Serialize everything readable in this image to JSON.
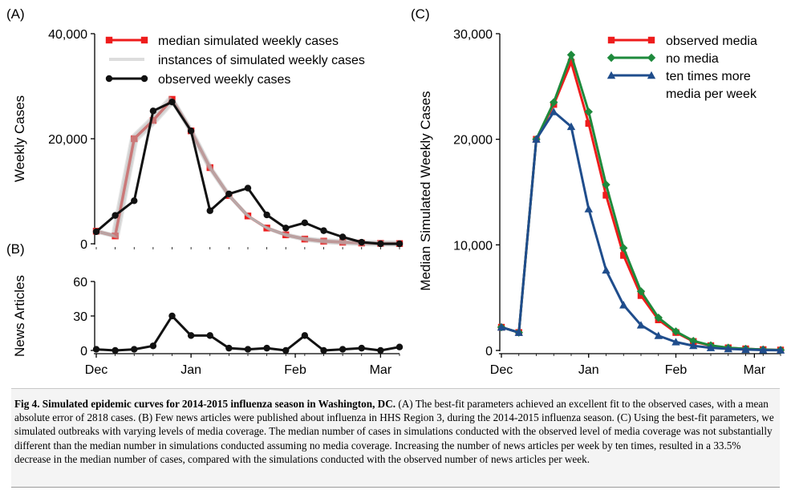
{
  "chart_data": [
    {
      "panel": "(A)",
      "type": "line",
      "ylabel": "Weekly Cases",
      "yticks": [
        {
          "value": 0,
          "label": "0"
        },
        {
          "value": 20000,
          "label": "20,000"
        },
        {
          "value": 40000,
          "label": "40,000"
        }
      ],
      "ylim": [
        0,
        40000
      ],
      "xlim": [
        0,
        16
      ],
      "month_ticks": [
        {
          "x": 0,
          "label": "Dec"
        },
        {
          "x": 5,
          "label": "Jan"
        },
        {
          "x": 10.5,
          "label": "Feb"
        },
        {
          "x": 15,
          "label": "Mar"
        }
      ],
      "legend_position": "top-center",
      "series": [
        {
          "name": "median simulated weekly cases",
          "color": "#ee1c1c",
          "marker": "square",
          "x": [
            0,
            1,
            2,
            3,
            4,
            5,
            6,
            7,
            8,
            9,
            10,
            11,
            12,
            13,
            14,
            15,
            16
          ],
          "y": [
            2400,
            1500,
            20000,
            23500,
            27500,
            21500,
            14500,
            9200,
            5300,
            3000,
            1700,
            900,
            500,
            300,
            150,
            80,
            40
          ]
        },
        {
          "name": "instances of simulated weekly cases",
          "color": "#b4b4b4",
          "marker": "none",
          "x": [
            0,
            1,
            2,
            3,
            4,
            5,
            6,
            7,
            8,
            9,
            10,
            11,
            12,
            13,
            14,
            15,
            16
          ],
          "y": [
            2400,
            1500,
            20000,
            23500,
            27500,
            21500,
            14500,
            9200,
            5300,
            3000,
            1700,
            900,
            500,
            300,
            150,
            80,
            40
          ]
        },
        {
          "name": "observed weekly cases",
          "color": "#111111",
          "marker": "circle",
          "x": [
            0,
            1,
            2,
            3,
            4,
            5,
            6,
            7,
            8,
            9,
            10,
            11,
            12,
            13,
            14,
            15,
            16
          ],
          "y": [
            2300,
            5400,
            8200,
            25300,
            27000,
            21500,
            6300,
            9500,
            10600,
            5500,
            3000,
            4000,
            2500,
            1300,
            300,
            0,
            0
          ]
        }
      ]
    },
    {
      "panel": "(B)",
      "type": "line",
      "ylabel": "News Articles",
      "yticks": [
        {
          "value": 0,
          "label": "0"
        },
        {
          "value": 30,
          "label": "30"
        },
        {
          "value": 60,
          "label": "60"
        }
      ],
      "ylim": [
        0,
        60
      ],
      "xlim": [
        0,
        16
      ],
      "month_ticks": [
        {
          "x": 0,
          "label": "Dec"
        },
        {
          "x": 5,
          "label": "Jan"
        },
        {
          "x": 10.5,
          "label": "Feb"
        },
        {
          "x": 15,
          "label": "Mar"
        }
      ],
      "series": [
        {
          "color": "#111111",
          "marker": "circle",
          "x": [
            0,
            1,
            2,
            3,
            4,
            5,
            6,
            7,
            8,
            9,
            10,
            11,
            12,
            13,
            14,
            15,
            16
          ],
          "y": [
            1,
            0,
            1,
            4,
            30,
            13,
            13,
            2,
            1,
            2,
            0,
            13,
            0,
            1,
            2,
            0,
            3
          ]
        }
      ]
    },
    {
      "panel": "(C)",
      "type": "line",
      "ylabel": "Median Simulated Weekly Cases",
      "yticks": [
        {
          "value": 0,
          "label": "0"
        },
        {
          "value": 10000,
          "label": "10,000"
        },
        {
          "value": 20000,
          "label": "20,000"
        },
        {
          "value": 30000,
          "label": "30,000"
        }
      ],
      "ylim": [
        0,
        30000
      ],
      "xlim": [
        0,
        16
      ],
      "month_ticks": [
        {
          "x": 0,
          "label": "Dec"
        },
        {
          "x": 5,
          "label": "Jan"
        },
        {
          "x": 10,
          "label": "Feb"
        },
        {
          "x": 14.5,
          "label": "Mar"
        }
      ],
      "legend_position": "top-right",
      "series": [
        {
          "name": "observed media",
          "color": "#ee1c1c",
          "marker": "square",
          "x": [
            0,
            1,
            2,
            3,
            4,
            5,
            6,
            7,
            8,
            9,
            10,
            11,
            12,
            13,
            14,
            15,
            16
          ],
          "y": [
            2200,
            1700,
            20000,
            23300,
            27300,
            21500,
            14700,
            9000,
            5200,
            2900,
            1700,
            850,
            450,
            250,
            150,
            80,
            40
          ]
        },
        {
          "name": "no media",
          "color": "#1e8a3c",
          "marker": "diamond",
          "x": [
            0,
            1,
            2,
            3,
            4,
            5,
            6,
            7,
            8,
            9,
            10,
            11,
            12,
            13,
            14,
            15,
            16
          ],
          "y": [
            2200,
            1700,
            20000,
            23500,
            28000,
            22600,
            15700,
            9700,
            5600,
            3100,
            1800,
            900,
            480,
            260,
            150,
            80,
            40
          ]
        },
        {
          "name": "ten times more media per week",
          "name_lines": [
            "ten times more",
            "media per week"
          ],
          "color": "#1f4d8c",
          "marker": "triangle",
          "x": [
            0,
            1,
            2,
            3,
            4,
            5,
            6,
            7,
            8,
            9,
            10,
            11,
            12,
            13,
            14,
            15,
            16
          ],
          "y": [
            2200,
            1700,
            20000,
            22600,
            21200,
            13400,
            7600,
            4300,
            2400,
            1400,
            800,
            450,
            250,
            150,
            80,
            40,
            20
          ]
        }
      ]
    }
  ],
  "caption": {
    "lead": "Fig 4. Simulated epidemic curves for 2014-2015 influenza season in Washington, DC.",
    "body": " (A) The best-fit parameters achieved an excellent fit to the observed cases, with a mean absolute error of 2818 cases. (B) Few news articles were published about influenza in HHS Region 3, during the 2014-2015 influenza season. (C) Using the best-fit parameters, we simulated outbreaks with varying levels of media coverage. The median number of cases in simulations conducted with the observed level of media coverage was not substantially different than the median number in simulations conducted assuming no media coverage. Increasing the number of news articles per week by ten times, resulted in a 33.5% decrease in the median number of cases, compared with the simulations conducted with the observed number of news articles per week."
  }
}
